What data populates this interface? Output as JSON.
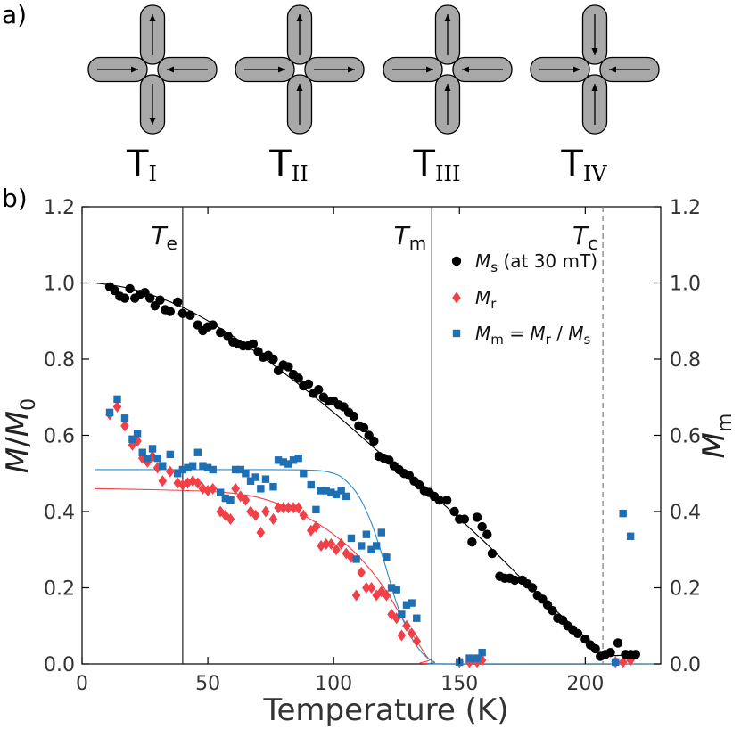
{
  "panel_a": {
    "label": "a)",
    "vertices": [
      {
        "label_base": "T",
        "label_sub": "I",
        "top": "up",
        "bottom": "down",
        "left": "right",
        "right": "left"
      },
      {
        "label_base": "T",
        "label_sub": "II",
        "top": "up",
        "bottom": "up",
        "left": "right",
        "right": "right"
      },
      {
        "label_base": "T",
        "label_sub": "III",
        "top": "up",
        "bottom": "up",
        "left": "right",
        "right": "left"
      },
      {
        "label_base": "T",
        "label_sub": "IV",
        "top": "down",
        "bottom": "up",
        "left": "right",
        "right": "left"
      }
    ]
  },
  "panel_b": {
    "label": "b)"
  },
  "chart_data": {
    "type": "scatter",
    "xlabel": "Temperature (K)",
    "ylabel": {
      "base1": "M",
      "slash": "/",
      "base2": "M",
      "sub": "0"
    },
    "y2label": {
      "base": "M",
      "sub": "m"
    },
    "xlim": [
      0,
      230
    ],
    "ylim": [
      0,
      1.2
    ],
    "y2lim": [
      0,
      1.2
    ],
    "xticks": [
      0,
      50,
      100,
      150,
      200
    ],
    "xtick_labels": [
      "0",
      "50",
      "100",
      "150",
      "200"
    ],
    "yticks": [
      0.0,
      0.2,
      0.4,
      0.6,
      0.8,
      1.0,
      1.2
    ],
    "ytick_labels": [
      "0.0",
      "0.2",
      "0.4",
      "0.6",
      "0.8",
      "1.0",
      "1.2"
    ],
    "y2tick_labels": [
      "0.0",
      "0.2",
      "0.4",
      "0.6",
      "0.8",
      "1.0",
      "1.2"
    ],
    "grid": false,
    "legend_position": "top-right",
    "vlines": [
      {
        "x": 40,
        "style": "solid",
        "label_base": "T",
        "label_sub": "e"
      },
      {
        "x": 139,
        "style": "solid",
        "label_base": "T",
        "label_sub": "m"
      },
      {
        "x": 207,
        "style": "dashed",
        "label_base": "T",
        "label_sub": "c"
      }
    ],
    "legend": [
      {
        "series": "Ms",
        "base": "M",
        "sub": "s",
        "rest": " (at 30 mT)"
      },
      {
        "series": "Mr",
        "base": "M",
        "sub": "r",
        "rest": ""
      },
      {
        "series": "Mm",
        "base": "M",
        "sub": "m",
        "rest": " = ",
        "base2": "M",
        "sub2": "r",
        "rest2": " / ",
        "base3": "M",
        "sub3": "s"
      }
    ],
    "series": [
      {
        "id": "Ms",
        "marker": "circle",
        "color": "#000000",
        "points": [
          [
            11,
            0.99
          ],
          [
            13,
            0.98
          ],
          [
            15,
            0.965
          ],
          [
            17,
            0.96
          ],
          [
            19,
            0.985
          ],
          [
            21,
            0.96
          ],
          [
            23,
            0.97
          ],
          [
            25,
            0.975
          ],
          [
            27,
            0.96
          ],
          [
            29,
            0.94
          ],
          [
            31,
            0.955
          ],
          [
            33,
            0.93
          ],
          [
            35,
            0.925
          ],
          [
            38,
            0.95
          ],
          [
            40,
            0.92
          ],
          [
            43,
            0.915
          ],
          [
            46,
            0.89
          ],
          [
            48,
            0.875
          ],
          [
            50,
            0.885
          ],
          [
            52,
            0.89
          ],
          [
            55,
            0.87
          ],
          [
            58,
            0.86
          ],
          [
            60,
            0.845
          ],
          [
            62,
            0.84
          ],
          [
            64,
            0.835
          ],
          [
            66,
            0.835
          ],
          [
            68,
            0.84
          ],
          [
            70,
            0.82
          ],
          [
            72,
            0.805
          ],
          [
            74,
            0.81
          ],
          [
            76,
            0.8
          ],
          [
            78,
            0.77
          ],
          [
            80,
            0.785
          ],
          [
            82,
            0.78
          ],
          [
            84,
            0.76
          ],
          [
            86,
            0.75
          ],
          [
            88,
            0.73
          ],
          [
            90,
            0.735
          ],
          [
            92,
            0.71
          ],
          [
            94,
            0.72
          ],
          [
            96,
            0.7
          ],
          [
            98,
            0.69
          ],
          [
            100,
            0.69
          ],
          [
            102,
            0.68
          ],
          [
            104,
            0.675
          ],
          [
            106,
            0.66
          ],
          [
            108,
            0.65
          ],
          [
            110,
            0.625
          ],
          [
            112,
            0.62
          ],
          [
            114,
            0.6
          ],
          [
            116,
            0.585
          ],
          [
            118,
            0.545
          ],
          [
            120,
            0.54
          ],
          [
            122,
            0.535
          ],
          [
            124,
            0.52
          ],
          [
            126,
            0.51
          ],
          [
            128,
            0.5
          ],
          [
            130,
            0.495
          ],
          [
            132,
            0.48
          ],
          [
            134,
            0.47
          ],
          [
            136,
            0.455
          ],
          [
            138,
            0.45
          ],
          [
            140,
            0.44
          ],
          [
            142,
            0.43
          ],
          [
            145,
            0.43
          ],
          [
            148,
            0.4
          ],
          [
            150,
            0.38
          ],
          [
            152,
            0.38
          ],
          [
            155,
            0.32
          ],
          [
            157,
            0.385
          ],
          [
            159,
            0.36
          ],
          [
            161,
            0.34
          ],
          [
            163,
            0.29
          ],
          [
            166,
            0.23
          ],
          [
            168,
            0.225
          ],
          [
            170,
            0.225
          ],
          [
            172,
            0.22
          ],
          [
            175,
            0.22
          ],
          [
            177,
            0.21
          ],
          [
            179,
            0.2
          ],
          [
            181,
            0.18
          ],
          [
            183,
            0.17
          ],
          [
            185,
            0.155
          ],
          [
            187,
            0.14
          ],
          [
            189,
            0.12
          ],
          [
            191,
            0.115
          ],
          [
            193,
            0.1
          ],
          [
            195,
            0.09
          ],
          [
            197,
            0.08
          ],
          [
            200,
            0.065
          ],
          [
            202,
            0.05
          ],
          [
            204,
            0.04
          ],
          [
            206,
            0.02
          ],
          [
            208,
            0.025
          ],
          [
            210,
            0.03
          ],
          [
            213,
            0.055
          ],
          [
            216,
            0.025
          ],
          [
            218,
            0.025
          ],
          [
            220,
            0.025
          ]
        ]
      },
      {
        "id": "Mr",
        "marker": "diamond",
        "color": "#f04048",
        "points": [
          [
            11,
            0.655
          ],
          [
            14,
            0.675
          ],
          [
            17,
            0.625
          ],
          [
            20,
            0.575
          ],
          [
            22,
            0.585
          ],
          [
            24,
            0.54
          ],
          [
            26,
            0.53
          ],
          [
            28,
            0.545
          ],
          [
            30,
            0.515
          ],
          [
            32,
            0.48
          ],
          [
            35,
            0.505
          ],
          [
            38,
            0.475
          ],
          [
            40,
            0.47
          ],
          [
            42,
            0.475
          ],
          [
            44,
            0.48
          ],
          [
            46,
            0.475
          ],
          [
            48,
            0.46
          ],
          [
            50,
            0.455
          ],
          [
            52,
            0.46
          ],
          [
            55,
            0.4
          ],
          [
            57,
            0.39
          ],
          [
            59,
            0.38
          ],
          [
            61,
            0.46
          ],
          [
            63,
            0.44
          ],
          [
            65,
            0.43
          ],
          [
            67,
            0.4
          ],
          [
            69,
            0.39
          ],
          [
            71,
            0.345
          ],
          [
            73,
            0.4
          ],
          [
            76,
            0.38
          ],
          [
            78,
            0.41
          ],
          [
            80,
            0.41
          ],
          [
            82,
            0.41
          ],
          [
            84,
            0.41
          ],
          [
            86,
            0.41
          ],
          [
            88,
            0.39
          ],
          [
            91,
            0.35
          ],
          [
            93,
            0.36
          ],
          [
            95,
            0.31
          ],
          [
            97,
            0.315
          ],
          [
            99,
            0.315
          ],
          [
            101,
            0.3
          ],
          [
            103,
            0.315
          ],
          [
            105,
            0.29
          ],
          [
            107,
            0.28
          ],
          [
            109,
            0.18
          ],
          [
            111,
            0.24
          ],
          [
            113,
            0.2
          ],
          [
            115,
            0.2
          ],
          [
            117,
            0.18
          ],
          [
            119,
            0.19
          ],
          [
            121,
            0.18
          ],
          [
            123,
            0.13
          ],
          [
            125,
            0.12
          ],
          [
            127,
            0.075
          ],
          [
            129,
            0.1
          ],
          [
            131,
            0.08
          ],
          [
            133,
            0.06
          ],
          [
            150,
            0.005
          ],
          [
            154,
            0.005
          ],
          [
            157,
            0.005
          ],
          [
            159,
            0.01
          ],
          [
            212,
            0.005
          ],
          [
            215,
            0.005
          ],
          [
            218,
            0.01
          ]
        ]
      },
      {
        "id": "Mm",
        "marker": "square",
        "color": "#1f6fb4",
        "points": [
          [
            11,
            0.66
          ],
          [
            14,
            0.695
          ],
          [
            17,
            0.645
          ],
          [
            20,
            0.59
          ],
          [
            22,
            0.605
          ],
          [
            24,
            0.555
          ],
          [
            26,
            0.54
          ],
          [
            28,
            0.565
          ],
          [
            30,
            0.54
          ],
          [
            32,
            0.52
          ],
          [
            35,
            0.55
          ],
          [
            38,
            0.5
          ],
          [
            40,
            0.51
          ],
          [
            42,
            0.515
          ],
          [
            44,
            0.52
          ],
          [
            46,
            0.555
          ],
          [
            48,
            0.52
          ],
          [
            50,
            0.515
          ],
          [
            52,
            0.51
          ],
          [
            55,
            0.45
          ],
          [
            57,
            0.435
          ],
          [
            59,
            0.43
          ],
          [
            61,
            0.51
          ],
          [
            63,
            0.51
          ],
          [
            65,
            0.5
          ],
          [
            67,
            0.48
          ],
          [
            69,
            0.49
          ],
          [
            71,
            0.46
          ],
          [
            73,
            0.485
          ],
          [
            76,
            0.465
          ],
          [
            78,
            0.535
          ],
          [
            80,
            0.53
          ],
          [
            82,
            0.525
          ],
          [
            84,
            0.535
          ],
          [
            86,
            0.54
          ],
          [
            88,
            0.5
          ],
          [
            91,
            0.47
          ],
          [
            93,
            0.405
          ],
          [
            95,
            0.455
          ],
          [
            97,
            0.455
          ],
          [
            99,
            0.45
          ],
          [
            101,
            0.445
          ],
          [
            103,
            0.455
          ],
          [
            105,
            0.44
          ],
          [
            107,
            0.33
          ],
          [
            109,
            0.275
          ],
          [
            111,
            0.31
          ],
          [
            113,
            0.34
          ],
          [
            115,
            0.3
          ],
          [
            117,
            0.31
          ],
          [
            119,
            0.345
          ],
          [
            121,
            0.28
          ],
          [
            123,
            0.2
          ],
          [
            125,
            0.195
          ],
          [
            127,
            0.13
          ],
          [
            129,
            0.155
          ],
          [
            131,
            0.16
          ],
          [
            133,
            0.12
          ],
          [
            150,
            0.005
          ],
          [
            154,
            0.015
          ],
          [
            157,
            0.015
          ],
          [
            159,
            0.03
          ],
          [
            212,
            0.005
          ],
          [
            215,
            0.395
          ],
          [
            218,
            0.335
          ]
        ]
      }
    ],
    "fit_curves": [
      {
        "series": "Ms",
        "color": "#000000",
        "points": [
          [
            5,
            1.0
          ],
          [
            20,
            0.984
          ],
          [
            40,
            0.936
          ],
          [
            60,
            0.86
          ],
          [
            80,
            0.765
          ],
          [
            100,
            0.66
          ],
          [
            120,
            0.545
          ],
          [
            140,
            0.44
          ],
          [
            160,
            0.32
          ],
          [
            180,
            0.19
          ],
          [
            200,
            0.07
          ],
          [
            206,
            0.025
          ],
          [
            220,
            0.025
          ]
        ]
      },
      {
        "series": "Mr",
        "color": "#f04048",
        "points": [
          [
            5,
            0.46
          ],
          [
            30,
            0.457
          ],
          [
            50,
            0.453
          ],
          [
            60,
            0.448
          ],
          [
            70,
            0.437
          ],
          [
            80,
            0.415
          ],
          [
            90,
            0.383
          ],
          [
            100,
            0.34
          ],
          [
            110,
            0.282
          ],
          [
            120,
            0.2
          ],
          [
            128,
            0.112
          ],
          [
            134,
            0.05
          ],
          [
            138,
            0.012
          ],
          [
            142,
            0.0
          ],
          [
            230,
            0.0
          ]
        ]
      },
      {
        "series": "Mm",
        "color": "#2a8ac6",
        "points": [
          [
            5,
            0.51
          ],
          [
            60,
            0.51
          ],
          [
            90,
            0.509
          ],
          [
            100,
            0.5
          ],
          [
            105,
            0.48
          ],
          [
            110,
            0.44
          ],
          [
            115,
            0.37
          ],
          [
            120,
            0.27
          ],
          [
            125,
            0.16
          ],
          [
            130,
            0.08
          ],
          [
            135,
            0.03
          ],
          [
            140,
            0.005
          ],
          [
            145,
            0.0
          ],
          [
            230,
            0.0
          ]
        ]
      }
    ]
  }
}
